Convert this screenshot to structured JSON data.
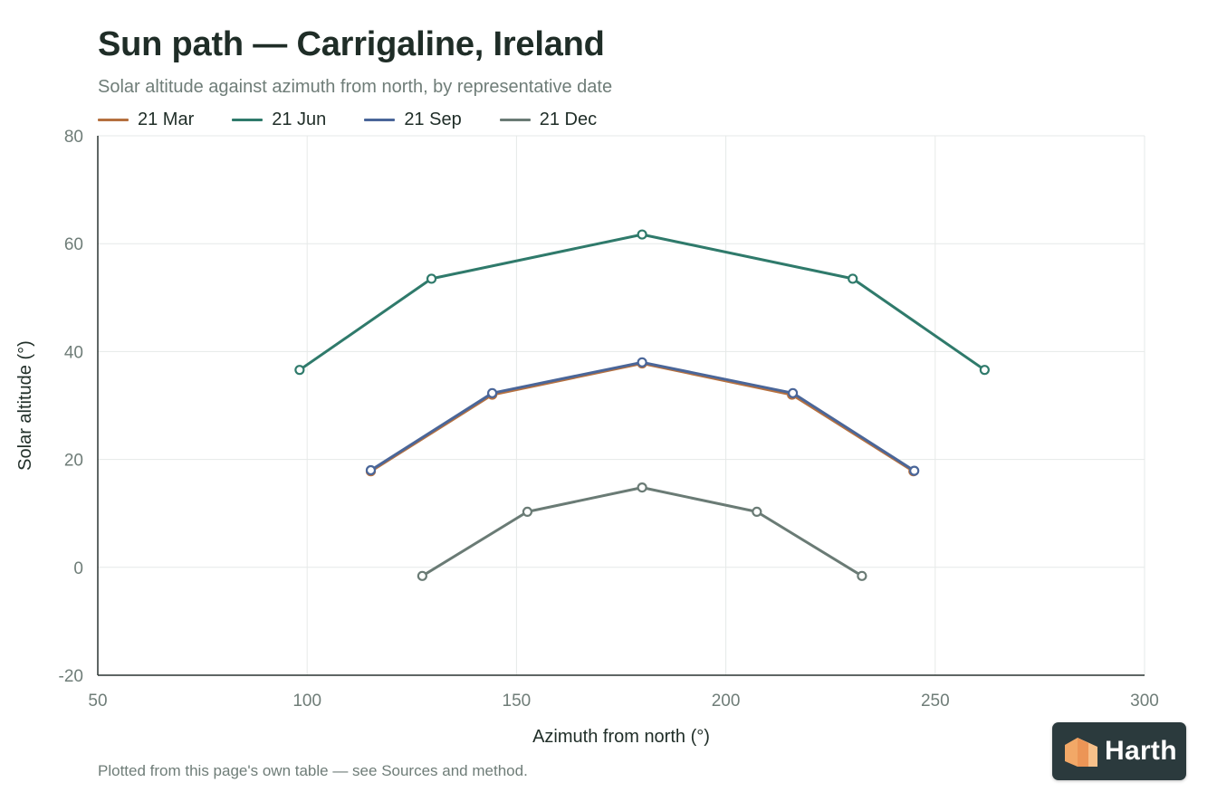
{
  "page": {
    "title": "Sun path — Carrigaline, Ireland",
    "subtitle": "Solar altitude against azimuth from north, by representative date",
    "footnote": "Plotted from this page's own table — see Sources and method.",
    "badge": {
      "name": "Harth",
      "icon": "harth-house-logo-icon",
      "background": "#2b3a3d",
      "accent": "#f2a867"
    }
  },
  "chart_data": {
    "type": "line",
    "title": "Sun path — Carrigaline, Ireland",
    "subtitle": "Solar altitude against azimuth from north, by representative date",
    "xlabel": "Azimuth from north (°)",
    "ylabel": "Solar altitude (°)",
    "xlim": [
      50,
      300
    ],
    "ylim": [
      -20,
      80
    ],
    "xticks": [
      50,
      100,
      150,
      200,
      250,
      300
    ],
    "yticks": [
      -20,
      0,
      20,
      40,
      60,
      80
    ],
    "grid": true,
    "legend_position": "top-left",
    "series": [
      {
        "name": "21 Mar",
        "color": "#b5703f",
        "points": [
          [
            115.2,
            17.8
          ],
          [
            144.2,
            32.0
          ],
          [
            180.0,
            37.8
          ],
          [
            215.8,
            32.0
          ],
          [
            244.8,
            17.8
          ]
        ]
      },
      {
        "name": "21 Jun",
        "color": "#2f7a6b",
        "points": [
          [
            98.2,
            36.6
          ],
          [
            129.7,
            53.5
          ],
          [
            180.0,
            61.7
          ],
          [
            230.3,
            53.5
          ],
          [
            261.8,
            36.6
          ]
        ]
      },
      {
        "name": "21 Sep",
        "color": "#4a6699",
        "points": [
          [
            115.2,
            18.0
          ],
          [
            144.2,
            32.3
          ],
          [
            180.0,
            38.0
          ],
          [
            216.0,
            32.3
          ],
          [
            245.0,
            17.9
          ]
        ]
      },
      {
        "name": "21 Dec",
        "color": "#6a7b75",
        "points": [
          [
            127.5,
            -1.6
          ],
          [
            152.6,
            10.3
          ],
          [
            180.0,
            14.8
          ],
          [
            207.4,
            10.3
          ],
          [
            232.5,
            -1.6
          ]
        ]
      }
    ]
  }
}
